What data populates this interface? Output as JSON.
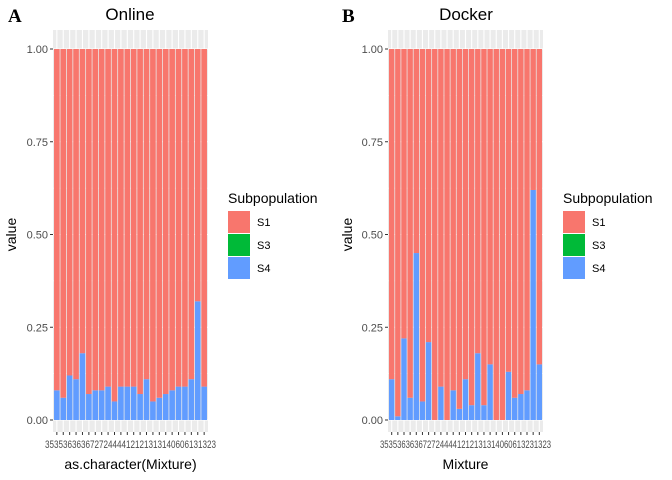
{
  "chart_data": [
    {
      "panel": "A",
      "type": "bar",
      "stacked": true,
      "title": "Online",
      "xlabel": "as.character(Mixture)",
      "ylabel": "value",
      "ylim": [
        0,
        1
      ],
      "yticks": [
        "0.00",
        "0.25",
        "0.50",
        "0.75",
        "1.00"
      ],
      "x_tick_text": "35353636367272444412121313140606131323",
      "legend": {
        "title": "Subpopulation",
        "placement": "right",
        "entries": [
          {
            "label": "S1",
            "color": "#F8766D"
          },
          {
            "label": "S3",
            "color": "#00BA38"
          },
          {
            "label": "S4",
            "color": "#619CFF"
          }
        ]
      },
      "series": [
        {
          "name": "S4",
          "color": "#619CFF",
          "values": [
            0.08,
            0.06,
            0.12,
            0.11,
            0.18,
            0.07,
            0.08,
            0.08,
            0.09,
            0.05,
            0.09,
            0.09,
            0.09,
            0.07,
            0.11,
            0.05,
            0.06,
            0.07,
            0.08,
            0.09,
            0.09,
            0.11,
            0.32,
            0.09
          ]
        },
        {
          "name": "S3",
          "color": "#00BA38",
          "values": [
            0,
            0,
            0,
            0,
            0,
            0,
            0,
            0,
            0,
            0,
            0,
            0,
            0,
            0,
            0,
            0,
            0,
            0,
            0,
            0,
            0,
            0,
            0,
            0
          ]
        },
        {
          "name": "S1",
          "color": "#F8766D",
          "values": [
            0.92,
            0.94,
            0.88,
            0.89,
            0.82,
            0.93,
            0.92,
            0.92,
            0.91,
            0.95,
            0.91,
            0.91,
            0.91,
            0.93,
            0.89,
            0.95,
            0.94,
            0.93,
            0.92,
            0.91,
            0.91,
            0.89,
            0.68,
            0.91
          ]
        }
      ]
    },
    {
      "panel": "B",
      "type": "bar",
      "stacked": true,
      "title": "Docker",
      "xlabel": "Mixture",
      "ylabel": "value",
      "ylim": [
        0,
        1
      ],
      "yticks": [
        "0.00",
        "0.25",
        "0.50",
        "0.75",
        "1.00"
      ],
      "x_tick_text": "3535363636727244441212131314060613231323",
      "legend": {
        "title": "Subpopulation",
        "placement": "right",
        "entries": [
          {
            "label": "S1",
            "color": "#F8766D"
          },
          {
            "label": "S3",
            "color": "#00BA38"
          },
          {
            "label": "S4",
            "color": "#619CFF"
          }
        ]
      },
      "series": [
        {
          "name": "S4",
          "color": "#619CFF",
          "values": [
            0.11,
            0.01,
            0.22,
            0.06,
            0.45,
            0.05,
            0.21,
            0,
            0.09,
            0,
            0.08,
            0.03,
            0.11,
            0.04,
            0.18,
            0.04,
            0.15,
            0,
            0,
            0.13,
            0.06,
            0.07,
            0.08,
            0.62,
            0.15
          ]
        },
        {
          "name": "S3",
          "color": "#00BA38",
          "values": [
            0,
            0,
            0,
            0,
            0,
            0,
            0,
            0,
            0,
            0,
            0,
            0,
            0,
            0,
            0,
            0,
            0,
            0,
            0,
            0,
            0,
            0,
            0,
            0,
            0
          ]
        },
        {
          "name": "S1",
          "color": "#F8766D",
          "values": [
            0.89,
            0.99,
            0.78,
            0.94,
            0.55,
            0.95,
            0.79,
            1,
            0.91,
            1,
            0.92,
            0.97,
            0.89,
            0.96,
            0.82,
            0.96,
            0.85,
            1,
            1,
            0.87,
            0.94,
            0.93,
            0.92,
            0.38,
            0.85
          ]
        }
      ]
    }
  ]
}
